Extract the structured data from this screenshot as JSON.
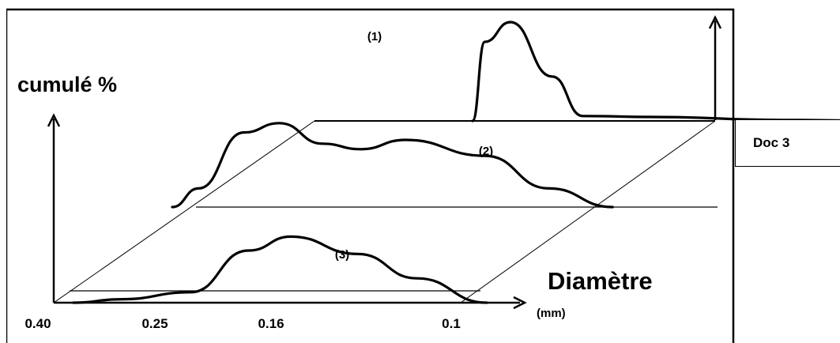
{
  "chart_data": {
    "type": "line",
    "title": "",
    "ylabel": "cumulé %",
    "xlabel": "Diamètre",
    "xunit": "(mm)",
    "x_ticks": [
      "0.40",
      "0.25",
      "0.16",
      "0.1"
    ],
    "series": [
      {
        "name": "(1)",
        "x": [
          0.16,
          0.155,
          0.145,
          0.13,
          0.12,
          0.1,
          0.06,
          0.04
        ],
        "y": [
          0,
          80,
          100,
          45,
          5,
          4,
          1,
          0
        ]
      },
      {
        "name": "(2)",
        "x": [
          0.4,
          0.36,
          0.3,
          0.26,
          0.22,
          0.19,
          0.16,
          0.13,
          0.11,
          0.09
        ],
        "y": [
          0,
          20,
          80,
          90,
          68,
          62,
          72,
          55,
          20,
          0
        ]
      },
      {
        "name": "(3)",
        "x": [
          0.4,
          0.33,
          0.25,
          0.2,
          0.17,
          0.14,
          0.12,
          0.1
        ],
        "y": [
          0,
          5,
          15,
          75,
          95,
          70,
          35,
          0
        ]
      }
    ]
  },
  "doc_label": "Doc 3"
}
